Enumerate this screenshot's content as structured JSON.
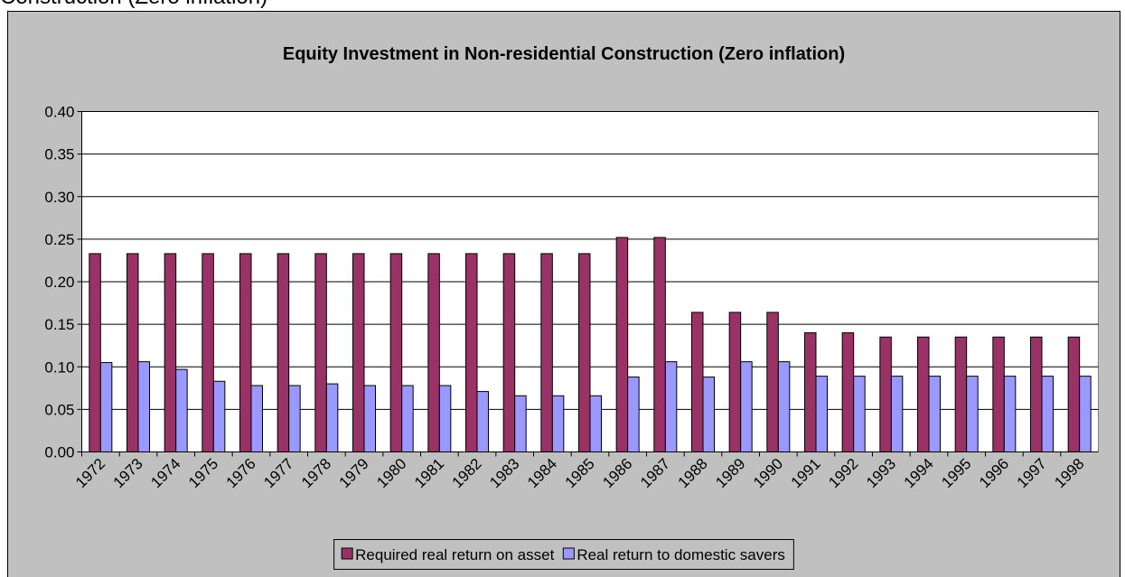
{
  "heading": "Construction (Zero inflation)",
  "chart_data": {
    "type": "bar",
    "title": "Equity Investment in Non-residential Construction (Zero inflation)",
    "categories": [
      "1972",
      "1973",
      "1974",
      "1975",
      "1976",
      "1977",
      "1978",
      "1979",
      "1980",
      "1981",
      "1982",
      "1983",
      "1984",
      "1985",
      "1986",
      "1987",
      "1988",
      "1989",
      "1990",
      "1991",
      "1992",
      "1993",
      "1994",
      "1995",
      "1996",
      "1997",
      "1998"
    ],
    "series": [
      {
        "name": "Required real return on asset",
        "color": "#993366",
        "values": [
          0.233,
          0.233,
          0.233,
          0.233,
          0.233,
          0.233,
          0.233,
          0.233,
          0.233,
          0.233,
          0.233,
          0.233,
          0.233,
          0.233,
          0.252,
          0.252,
          0.164,
          0.164,
          0.164,
          0.14,
          0.14,
          0.135,
          0.135,
          0.135,
          0.135,
          0.135,
          0.135
        ]
      },
      {
        "name": "Real return to domestic savers",
        "color": "#9999ff",
        "values": [
          0.105,
          0.106,
          0.097,
          0.083,
          0.078,
          0.078,
          0.08,
          0.078,
          0.078,
          0.078,
          0.071,
          0.066,
          0.066,
          0.066,
          0.088,
          0.106,
          0.088,
          0.106,
          0.106,
          0.089,
          0.089,
          0.089,
          0.089,
          0.089,
          0.089,
          0.089,
          0.089
        ]
      }
    ],
    "ylim": [
      0,
      0.4
    ],
    "yticks": [
      {
        "value": 0,
        "label": "0.00"
      },
      {
        "value": 0.05,
        "label": "0.05"
      },
      {
        "value": 0.1,
        "label": "0.10"
      },
      {
        "value": 0.15,
        "label": "0.15"
      },
      {
        "value": 0.2,
        "label": "0.20"
      },
      {
        "value": 0.25,
        "label": "0.25"
      },
      {
        "value": 0.3,
        "label": "0.30"
      },
      {
        "value": 0.35,
        "label": "0.35"
      },
      {
        "value": 0.4,
        "label": "0.40"
      }
    ],
    "grid": true,
    "legend": "bottom"
  }
}
